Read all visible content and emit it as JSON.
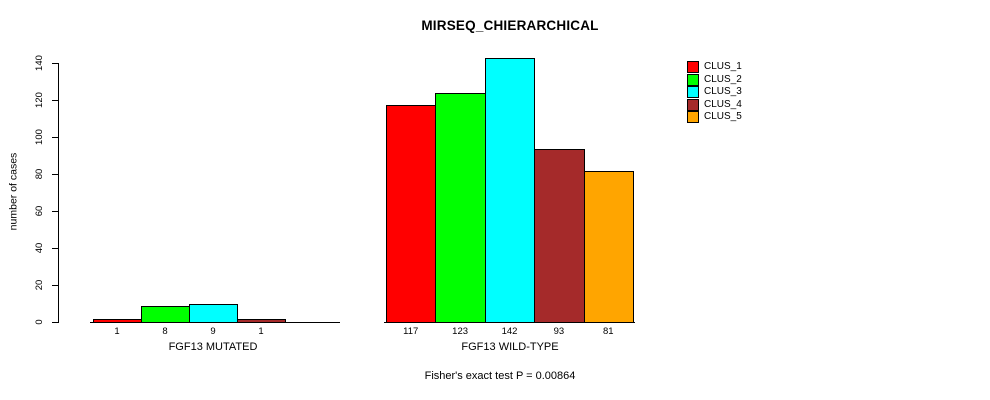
{
  "chart_data": {
    "type": "bar",
    "title": "MIRSEQ_CHIERARCHICAL",
    "ylabel": "number of cases",
    "xlabel": "",
    "ylim": [
      0,
      140
    ],
    "yticks": [
      0,
      20,
      40,
      60,
      80,
      100,
      120,
      140
    ],
    "categories": [
      "FGF13 MUTATED",
      "FGF13 WILD-TYPE"
    ],
    "series": [
      {
        "name": "CLUS_1",
        "color": "#ff0000",
        "values": [
          1,
          117
        ]
      },
      {
        "name": "CLUS_2",
        "color": "#00ff00",
        "values": [
          8,
          123
        ]
      },
      {
        "name": "CLUS_3",
        "color": "#00ffff",
        "values": [
          9,
          142
        ]
      },
      {
        "name": "CLUS_4",
        "color": "#a52a2a",
        "values": [
          1,
          93
        ]
      },
      {
        "name": "CLUS_5",
        "color": "#ffa500",
        "values": [
          0,
          81
        ]
      }
    ],
    "value_labels": [
      [
        "1",
        "8",
        "9",
        "1",
        ""
      ],
      [
        "117",
        "123",
        "142",
        "93",
        "81"
      ]
    ],
    "annotation": "Fisher's exact test P = 0.00864",
    "legend_position": "right",
    "grid": false,
    "background_color": "#ffffff",
    "axis_color": "#000000"
  }
}
